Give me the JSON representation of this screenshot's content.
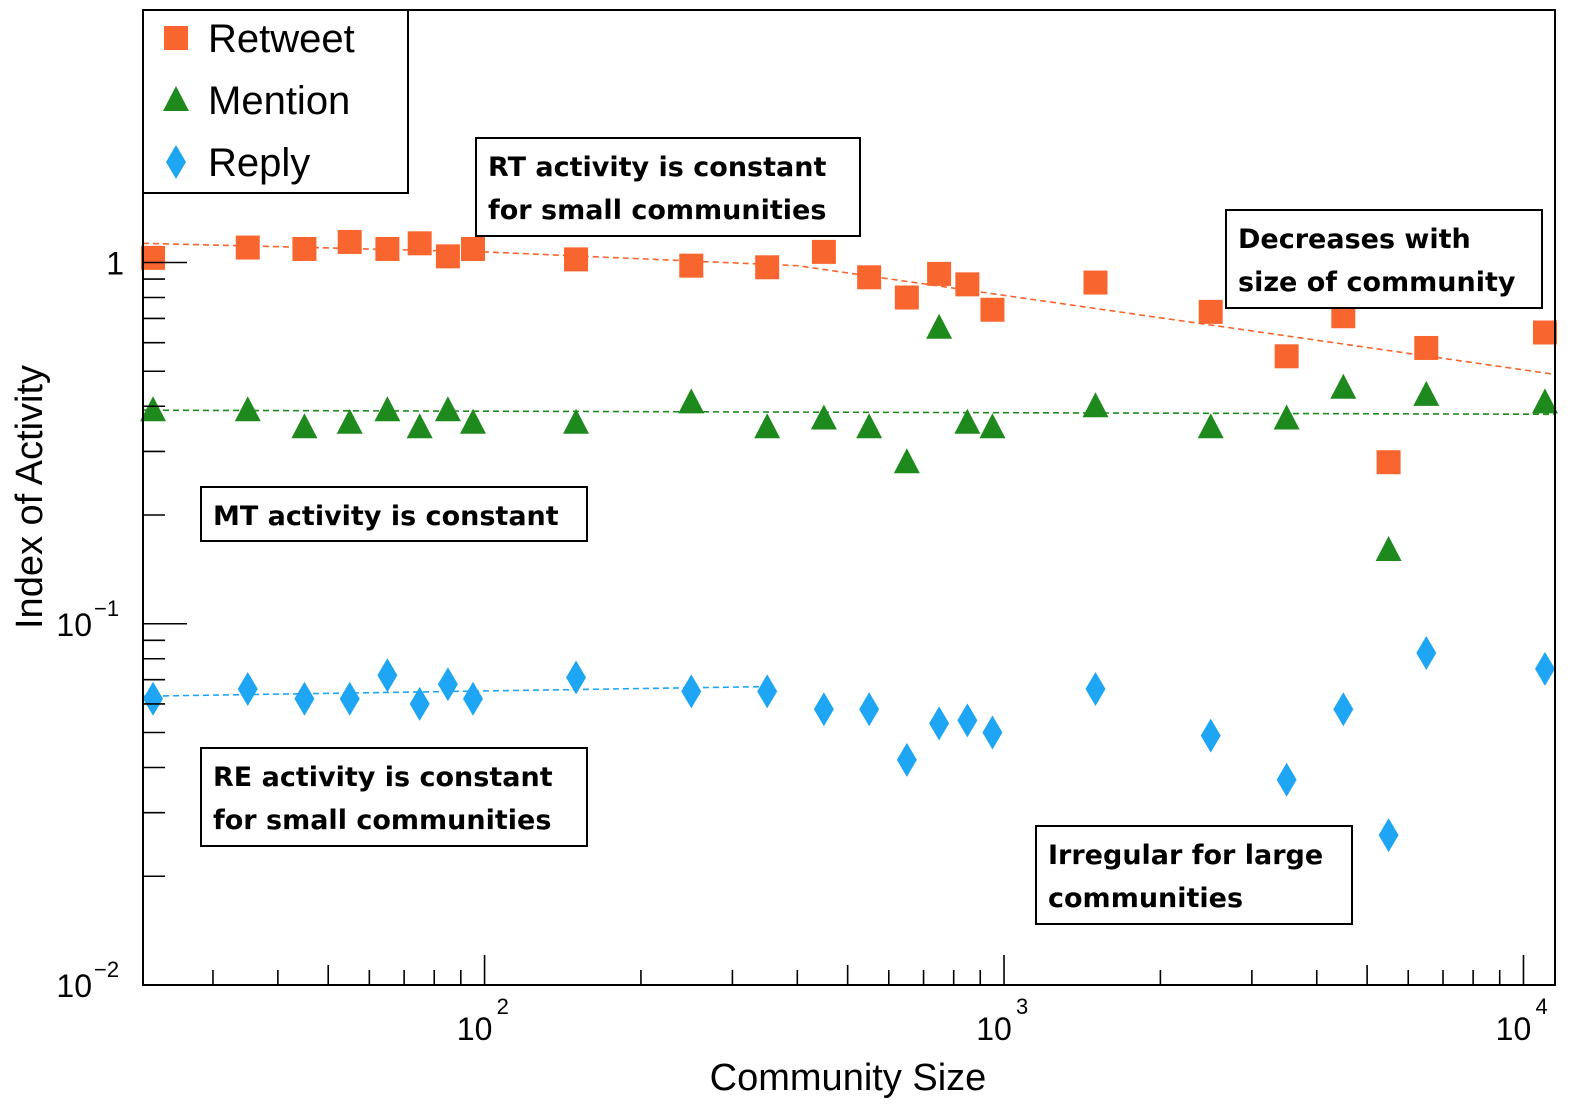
{
  "chart_data": {
    "type": "scatter",
    "xlabel": "Community Size",
    "ylabel": "Index of Activity",
    "xscale": "log",
    "yscale": "log",
    "xlim": [
      22,
      11500
    ],
    "ylim": [
      0.01,
      5
    ],
    "x_ticks": [
      {
        "base": "10",
        "exp": "2",
        "value": 100
      },
      {
        "base": "10",
        "exp": "3",
        "value": 1000
      },
      {
        "base": "10",
        "exp": "4",
        "value": 10000
      }
    ],
    "y_ticks": [
      {
        "base": "10",
        "exp": "−2",
        "value": 0.01
      },
      {
        "base": "10",
        "exp": "−1",
        "value": 0.1
      },
      {
        "base": "1",
        "exp": "",
        "value": 1
      }
    ],
    "legend": {
      "position": "top-left"
    },
    "series": [
      {
        "name": "Retweet",
        "marker": "square",
        "color": "#F9652E",
        "points": [
          [
            23,
            1.03
          ],
          [
            35,
            1.1
          ],
          [
            45,
            1.09
          ],
          [
            55,
            1.14
          ],
          [
            65,
            1.09
          ],
          [
            75,
            1.13
          ],
          [
            85,
            1.04
          ],
          [
            95,
            1.09
          ],
          [
            150,
            1.02
          ],
          [
            250,
            0.98
          ],
          [
            350,
            0.97
          ],
          [
            450,
            1.07
          ],
          [
            550,
            0.91
          ],
          [
            650,
            0.8
          ],
          [
            750,
            0.93
          ],
          [
            850,
            0.87
          ],
          [
            950,
            0.74
          ],
          [
            1500,
            0.88
          ],
          [
            2500,
            0.73
          ],
          [
            3500,
            0.55
          ],
          [
            4500,
            0.71
          ],
          [
            5500,
            0.28
          ],
          [
            6500,
            0.58
          ],
          [
            11000,
            0.64
          ]
        ]
      },
      {
        "name": "Mention",
        "marker": "triangle",
        "color": "#1E8A1E",
        "points": [
          [
            23,
            0.39
          ],
          [
            35,
            0.39
          ],
          [
            45,
            0.35
          ],
          [
            55,
            0.36
          ],
          [
            65,
            0.39
          ],
          [
            75,
            0.35
          ],
          [
            85,
            0.39
          ],
          [
            95,
            0.36
          ],
          [
            150,
            0.36
          ],
          [
            250,
            0.41
          ],
          [
            350,
            0.35
          ],
          [
            450,
            0.37
          ],
          [
            550,
            0.35
          ],
          [
            650,
            0.28
          ],
          [
            750,
            0.66
          ],
          [
            850,
            0.36
          ],
          [
            950,
            0.35
          ],
          [
            1500,
            0.4
          ],
          [
            2500,
            0.35
          ],
          [
            3500,
            0.37
          ],
          [
            4500,
            0.45
          ],
          [
            5500,
            0.16
          ],
          [
            6500,
            0.43
          ],
          [
            11000,
            0.41
          ]
        ]
      },
      {
        "name": "Reply",
        "marker": "diamond",
        "color": "#1EA6F5",
        "points": [
          [
            23,
            0.062
          ],
          [
            35,
            0.066
          ],
          [
            45,
            0.062
          ],
          [
            55,
            0.062
          ],
          [
            65,
            0.072
          ],
          [
            75,
            0.06
          ],
          [
            85,
            0.068
          ],
          [
            95,
            0.062
          ],
          [
            150,
            0.071
          ],
          [
            250,
            0.065
          ],
          [
            350,
            0.065
          ],
          [
            450,
            0.058
          ],
          [
            550,
            0.058
          ],
          [
            650,
            0.042
          ],
          [
            750,
            0.053
          ],
          [
            850,
            0.054
          ],
          [
            950,
            0.05
          ],
          [
            1500,
            0.066
          ],
          [
            2500,
            0.049
          ],
          [
            3500,
            0.037
          ],
          [
            4500,
            0.058
          ],
          [
            5500,
            0.026
          ],
          [
            6500,
            0.083
          ],
          [
            11000,
            0.075
          ]
        ]
      }
    ],
    "fit_lines": [
      {
        "series": "Retweet",
        "points": [
          [
            22,
            1.13
          ],
          [
            100,
            1.07
          ],
          [
            400,
            0.98
          ],
          [
            11500,
            0.49
          ]
        ]
      },
      {
        "series": "Mention",
        "points": [
          [
            22,
            0.39
          ],
          [
            11500,
            0.38
          ]
        ]
      },
      {
        "series": "Reply",
        "points": [
          [
            22,
            0.063
          ],
          [
            350,
            0.067
          ]
        ]
      }
    ],
    "annotations": [
      {
        "lines": [
          "RT activity is constant",
          "for small communities"
        ]
      },
      {
        "lines": [
          "Decreases with",
          "size of community"
        ]
      },
      {
        "lines": [
          "MT activity is constant"
        ]
      },
      {
        "lines": [
          "RE activity is constant",
          "for small communities"
        ]
      },
      {
        "lines": [
          "Irregular for large",
          "communities"
        ]
      }
    ]
  }
}
